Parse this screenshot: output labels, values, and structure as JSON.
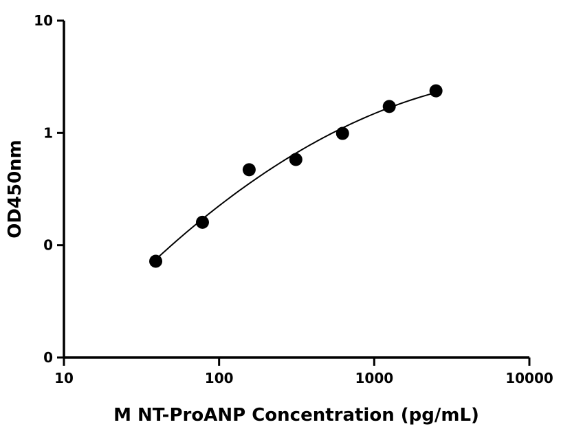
{
  "chart_data": {
    "type": "scatter",
    "title": "",
    "xlabel": "M NT-ProANP Concentration (pg/mL)",
    "ylabel": "OD450nm",
    "x_scale": "log",
    "y_scale": "log",
    "xlim": [
      10,
      10000
    ],
    "ylim": [
      0.01,
      10
    ],
    "x_ticks": [
      10,
      100,
      1000,
      10000
    ],
    "x_tick_labels": [
      "10",
      "100",
      "1000",
      "10000"
    ],
    "y_ticks": [
      0.01,
      0.1,
      1,
      10
    ],
    "y_tick_labels": [
      "0",
      "0",
      "1",
      "10"
    ],
    "grid": false,
    "series": [
      {
        "points": [
          {
            "x": 39.06,
            "y": 0.072
          },
          {
            "x": 78.13,
            "y": 0.16
          },
          {
            "x": 156.25,
            "y": 0.47
          },
          {
            "x": 312.5,
            "y": 0.58
          },
          {
            "x": 625,
            "y": 0.99
          },
          {
            "x": 1250,
            "y": 1.72
          },
          {
            "x": 2500,
            "y": 2.37
          }
        ],
        "color": "#000000"
      }
    ],
    "fit_curve": {
      "x_range": [
        39.06,
        2500
      ],
      "color": "#000000"
    }
  }
}
